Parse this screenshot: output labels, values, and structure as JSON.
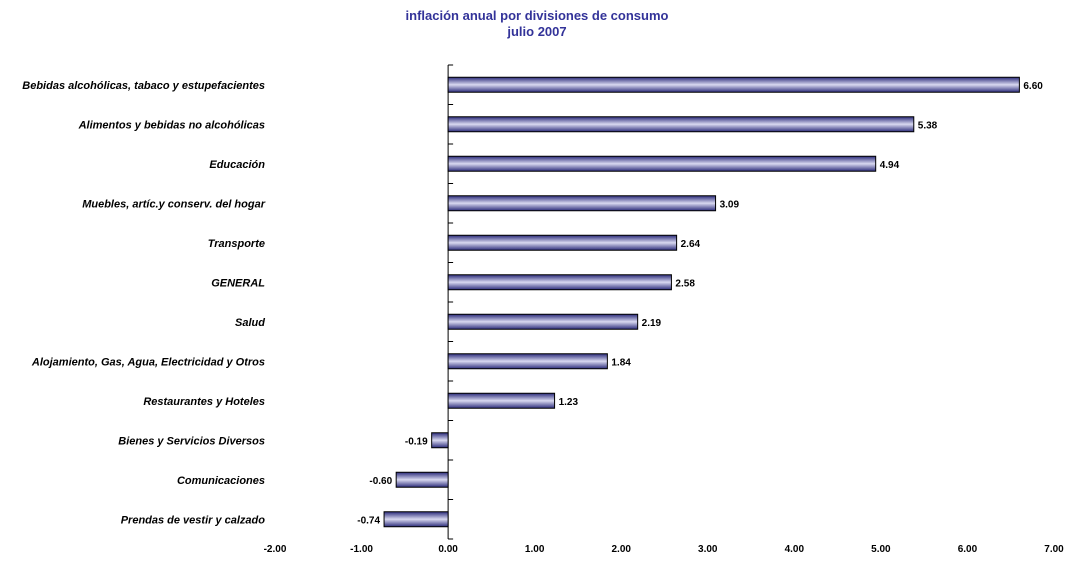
{
  "chart_data": {
    "type": "bar",
    "orientation": "horizontal",
    "title": "inflación anual por divisiones de consumo",
    "subtitle": "julio 2007",
    "xlim": [
      -2.0,
      7.0
    ],
    "ticks": [
      "-2.00",
      "-1.00",
      "0.00",
      "1.00",
      "2.00",
      "3.00",
      "4.00",
      "5.00",
      "6.00",
      "7.00"
    ],
    "categories": [
      "Bebidas alcohólicas, tabaco y estupefacientes",
      "Alimentos y bebidas no alcohólicas",
      "Educación",
      "Muebles, artíc.y conserv. del hogar",
      "Transporte",
      "GENERAL",
      "Salud",
      "Alojamiento, Gas, Agua, Electricidad y Otros",
      "Restaurantes y Hoteles",
      "Bienes y Servicios Diversos",
      "Comunicaciones",
      "Prendas de vestir y calzado"
    ],
    "values": [
      6.6,
      5.38,
      4.94,
      3.09,
      2.64,
      2.58,
      2.19,
      1.84,
      1.23,
      -0.19,
      -0.6,
      -0.74
    ],
    "value_labels": [
      "6.60",
      "5.38",
      "4.94",
      "3.09",
      "2.64",
      "2.58",
      "2.19",
      "1.84",
      "1.23",
      "-0.19",
      "-0.60",
      "-0.74"
    ],
    "grid": false,
    "legend": "none",
    "colors": {
      "bar_dark": "#2b2b7a",
      "bar_light": "#d8d8f0",
      "title": "#333399"
    }
  }
}
